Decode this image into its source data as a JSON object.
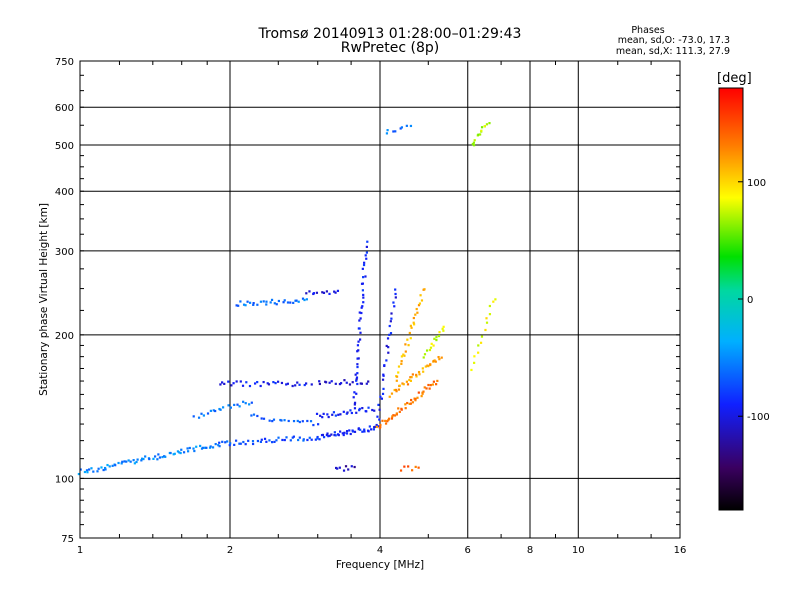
{
  "title": {
    "line1": "Tromsø 20140913 01:28:00–01:29:43",
    "line2": "RwPretec (8p)"
  },
  "stats": {
    "heading": "Phases",
    "line_o": "mean, sd,O: -73.0, 17.3",
    "line_x": "mean, sd,X: 111.3, 27.9"
  },
  "colorbar": {
    "unit": "[deg]",
    "ticks": [
      {
        "label": "100",
        "value": 100
      },
      {
        "label": "0",
        "value": 0
      },
      {
        "label": "-100",
        "value": -100
      }
    ],
    "range": [
      -180,
      180
    ]
  },
  "chart_data": {
    "type": "scatter",
    "xlabel": "Frequency [MHz]",
    "ylabel": "Stationary phase Virtual Height [km]",
    "xscale": "log",
    "yscale": "log",
    "xlim": [
      1,
      16
    ],
    "ylim": [
      75,
      750
    ],
    "xticks": [
      {
        "label": "1",
        "value": 1
      },
      {
        "label": "2",
        "value": 2
      },
      {
        "label": "4",
        "value": 4
      },
      {
        "label": "6",
        "value": 6
      },
      {
        "label": "8",
        "value": 8
      },
      {
        "label": "10",
        "value": 10
      },
      {
        "label": "16",
        "value": 16
      }
    ],
    "yticks": [
      {
        "label": "75",
        "value": 75
      },
      {
        "label": "100",
        "value": 100
      },
      {
        "label": "200",
        "value": 200
      },
      {
        "label": "300",
        "value": 300
      },
      {
        "label": "400",
        "value": 400
      },
      {
        "label": "500",
        "value": 500
      },
      {
        "label": "600",
        "value": 600
      },
      {
        "label": "750",
        "value": 750
      }
    ],
    "grid": true,
    "colorscale": "phase (deg), black-blue-cyan-green-yellow-red",
    "segments": [
      {
        "f0": 1.0,
        "f1": 1.9,
        "h0": 103,
        "h1": 118,
        "phase": -52,
        "n": 70
      },
      {
        "f0": 1.9,
        "f1": 3.0,
        "h0": 118,
        "h1": 122,
        "phase": -72,
        "n": 40
      },
      {
        "f0": 3.0,
        "f1": 3.95,
        "h0": 122,
        "h1": 128,
        "phase": -90,
        "n": 40
      },
      {
        "f0": 1.9,
        "f1": 2.9,
        "h0": 158,
        "h1": 158,
        "phase": -95,
        "n": 30
      },
      {
        "f0": 1.7,
        "f1": 2.2,
        "h0": 135,
        "h1": 145,
        "phase": -60,
        "n": 20
      },
      {
        "f0": 2.2,
        "f1": 3.0,
        "h0": 135,
        "h1": 130,
        "phase": -70,
        "n": 20
      },
      {
        "f0": 3.0,
        "f1": 3.9,
        "h0": 135,
        "h1": 140,
        "phase": -90,
        "n": 25
      },
      {
        "f0": 2.05,
        "f1": 2.85,
        "h0": 232,
        "h1": 236,
        "phase": -60,
        "n": 30
      },
      {
        "f0": 2.85,
        "f1": 3.3,
        "h0": 244,
        "h1": 246,
        "phase": -100,
        "n": 12
      },
      {
        "f0": 3.0,
        "f1": 3.8,
        "h0": 158,
        "h1": 160,
        "phase": -110,
        "n": 18
      },
      {
        "f0": 3.55,
        "f1": 3.75,
        "h0": 140,
        "h1": 310,
        "phase": -92,
        "n": 45
      },
      {
        "f0": 3.95,
        "f1": 4.3,
        "h0": 130,
        "h1": 250,
        "phase": -95,
        "n": 30
      },
      {
        "f0": 3.95,
        "f1": 5.2,
        "h0": 128,
        "h1": 160,
        "phase": 135,
        "n": 45
      },
      {
        "f0": 4.2,
        "f1": 5.3,
        "h0": 150,
        "h1": 180,
        "phase": 120,
        "n": 35
      },
      {
        "f0": 4.3,
        "f1": 4.9,
        "h0": 160,
        "h1": 250,
        "phase": 110,
        "n": 30
      },
      {
        "f0": 4.9,
        "f1": 5.4,
        "h0": 180,
        "h1": 210,
        "phase": 80,
        "n": 15
      },
      {
        "f0": 3.25,
        "f1": 3.55,
        "h0": 105,
        "h1": 105,
        "phase": -115,
        "n": 8
      },
      {
        "f0": 4.4,
        "f1": 4.8,
        "h0": 105,
        "h1": 105,
        "phase": 140,
        "n": 6
      },
      {
        "f0": 6.1,
        "f1": 6.6,
        "h0": 500,
        "h1": 560,
        "phase": 70,
        "n": 14
      },
      {
        "f0": 6.1,
        "f1": 6.8,
        "h0": 170,
        "h1": 240,
        "phase": 85,
        "n": 14
      },
      {
        "f0": 4.1,
        "f1": 4.6,
        "h0": 530,
        "h1": 545,
        "phase": -60,
        "n": 8
      }
    ]
  }
}
